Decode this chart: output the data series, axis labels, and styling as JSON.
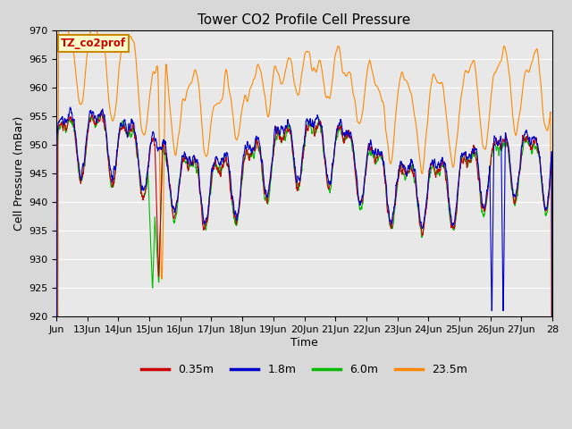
{
  "title": "Tower CO2 Profile Cell Pressure",
  "xlabel": "Time",
  "ylabel": "Cell Pressure (mBar)",
  "ylim": [
    920,
    970
  ],
  "xlim": [
    0,
    16
  ],
  "bg_color": "#d8d8d8",
  "plot_bg_color": "#e8e8e8",
  "series_colors": {
    "0.35m": "#cc0000",
    "1.8m": "#0000cc",
    "6.0m": "#00bb00",
    "23.5m": "#ff8800"
  },
  "annotation_text": "TZ_co2prof",
  "annotation_bg": "#ffffcc",
  "annotation_border": "#cc8800",
  "annotation_color": "#cc0000",
  "tick_labels": [
    "Jun",
    "13Jun",
    "14Jun",
    "15Jun",
    "16Jun",
    "17Jun",
    "18Jun",
    "19Jun",
    "20Jun",
    "21Jun",
    "22Jun",
    "23Jun",
    "24Jun",
    "25Jun",
    "26Jun",
    "27Jun",
    "28"
  ],
  "grid_color": "#ffffff",
  "line_width": 0.8,
  "figsize": [
    6.4,
    4.8
  ],
  "dpi": 100
}
